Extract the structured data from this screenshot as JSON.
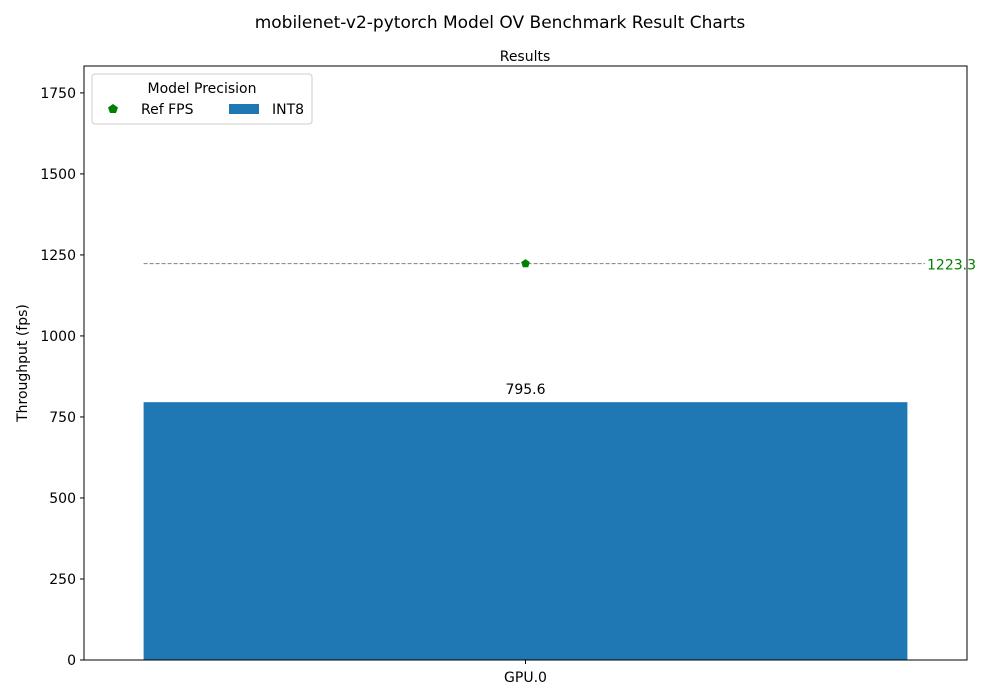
{
  "chart_data": {
    "type": "bar",
    "suptitle": "mobilenet-v2-pytorch Model OV Benchmark Result Charts",
    "title": "Results",
    "xlabel": "",
    "ylabel": "Throughput (fps)",
    "categories": [
      "GPU.0"
    ],
    "series": [
      {
        "name": "INT8",
        "values": [
          795.6
        ],
        "color": "#1f77b4"
      }
    ],
    "data_labels": [
      "795.6"
    ],
    "reference": {
      "name": "Ref FPS",
      "value": 1223.3,
      "label": "1223.3",
      "color": "#008000",
      "marker": "pentagon",
      "line_color": "#808080",
      "line_style": "dashed"
    },
    "ylim": [
      0,
      1833
    ],
    "yticks": [
      0,
      250,
      500,
      750,
      1000,
      1250,
      1500,
      1750
    ],
    "ytick_labels": [
      "0",
      "250",
      "500",
      "750",
      "1000",
      "1250",
      "1500",
      "1750"
    ],
    "grid": false,
    "legend": {
      "title": "Model Precision",
      "placement": "top-left",
      "entries": [
        "Ref FPS",
        "INT8"
      ]
    }
  }
}
